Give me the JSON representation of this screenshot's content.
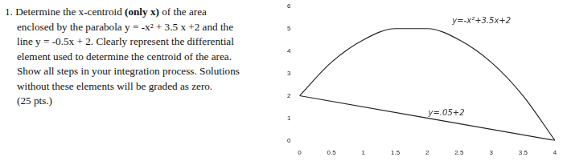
{
  "problem": {
    "lines": [
      [
        {
          "text": "1. Determine the x-centroid ",
          "bold": false
        },
        {
          "text": "(only x)",
          "bold": true
        },
        {
          "text": " of the area",
          "bold": false
        }
      ],
      [
        {
          "text": "enclosed by the parabola y = -x² + 3.5 x +2 and the",
          "bold": false
        }
      ],
      [
        {
          "text": "line y = -0.5x + 2. Clearly represent the differential",
          "bold": false
        }
      ],
      [
        {
          "text": "element used to determine the centroid of the area.",
          "bold": false
        }
      ],
      [
        {
          "text": "Show all steps in your integration process. Solutions",
          "bold": false
        }
      ],
      [
        {
          "text": "without these elements will be graded as zero.",
          "bold": false
        }
      ],
      [
        {
          "text": "(25 pts.)",
          "bold": false
        }
      ]
    ]
  },
  "chart_data": {
    "type": "line",
    "series": [
      {
        "name": "y=-x²+3.5x+2",
        "color": "#222222",
        "marker": "none",
        "line_style": "solid",
        "x": [
          0,
          0.5,
          1,
          1.5,
          2,
          2.5,
          3,
          3.5,
          4
        ],
        "values": [
          2,
          3.5,
          4.5,
          5,
          5,
          4.5,
          3.5,
          2,
          0
        ]
      },
      {
        "name": "y=.05+2",
        "color": "#222222",
        "marker": "none",
        "line_style": "solid",
        "x": [
          0,
          4
        ],
        "values": [
          2,
          0
        ]
      }
    ],
    "annotations": [
      {
        "text": "y=-x²+3.5x+2",
        "x": 2.85,
        "y": 5.35
      },
      {
        "text": "y=.05+2",
        "x": 2.3,
        "y": 1.2
      }
    ],
    "xlim": [
      0,
      4
    ],
    "xticks": [
      0,
      0.5,
      1,
      1.5,
      2,
      2.5,
      3,
      3.5,
      4
    ],
    "ylim": [
      0,
      6
    ],
    "yticks": [
      0,
      1,
      2,
      3,
      4,
      5,
      6
    ],
    "grid": false
  }
}
